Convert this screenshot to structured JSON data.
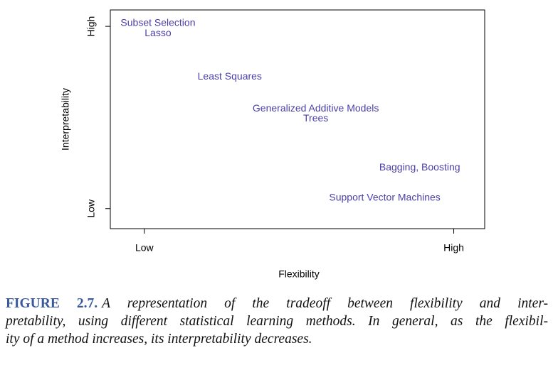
{
  "chart_data": {
    "type": "scatter",
    "labels": [
      "Subset Selection",
      "Lasso",
      "Least Squares",
      "Generalized Additive Models",
      "Trees",
      "Bagging, Boosting",
      "Support Vector Machines"
    ],
    "x": [
      0.44,
      0.44,
      2.76,
      5.54,
      5.54,
      8.9,
      7.77
    ],
    "values": [
      10.16,
      9.6,
      7.23,
      5.47,
      4.92,
      2.23,
      0.59
    ],
    "color": "#4a3fa8",
    "xlabel": "Flexibility",
    "ylabel": "Interpretability",
    "xlim": [
      -1.1,
      11
    ],
    "ylim": [
      -1.1,
      10.9
    ],
    "xticks": [
      {
        "value": 0,
        "label": "Low"
      },
      {
        "value": 10,
        "label": "High"
      }
    ],
    "yticks": [
      {
        "value": 0,
        "label": "Low"
      },
      {
        "value": 10,
        "label": "High"
      }
    ]
  },
  "caption": {
    "label": "FIGURE 2.7.",
    "lines": [
      "A representation of the tradeoff between flexibility and inter-",
      "pretability, using different statistical learning methods. In general, as the flexibil-",
      "ity of a method increases, its interpretability decreases."
    ]
  }
}
